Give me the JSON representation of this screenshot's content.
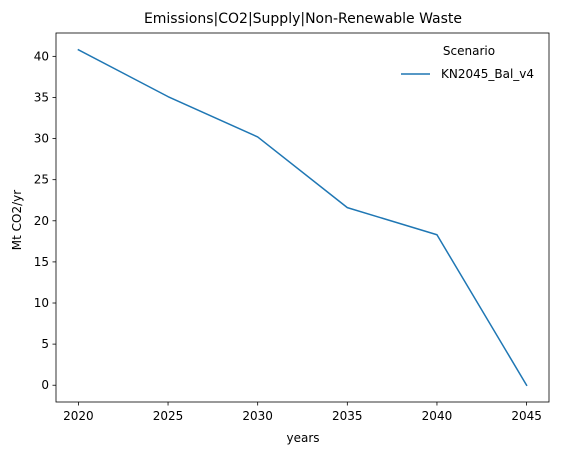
{
  "chart_data": {
    "type": "line",
    "title": "Emissions|CO2|Supply|Non-Renewable Waste",
    "xlabel": "years",
    "ylabel": "Mt CO2/yr",
    "x": [
      2020,
      2025,
      2030,
      2035,
      2040,
      2045
    ],
    "xticks": [
      2020,
      2025,
      2030,
      2035,
      2040,
      2045
    ],
    "yticks": [
      0,
      5,
      10,
      15,
      20,
      25,
      30,
      35,
      40
    ],
    "xlim": [
      2018.75,
      2046.25
    ],
    "ylim": [
      -2.04,
      42.84
    ],
    "grid": false,
    "legend": {
      "title": "Scenario",
      "placement": "top-right"
    },
    "series": [
      {
        "name": "KN2045_Bal_v4",
        "color": "#1f77b4",
        "values": [
          40.8,
          35.1,
          30.2,
          21.6,
          18.3,
          0.0
        ]
      }
    ]
  }
}
